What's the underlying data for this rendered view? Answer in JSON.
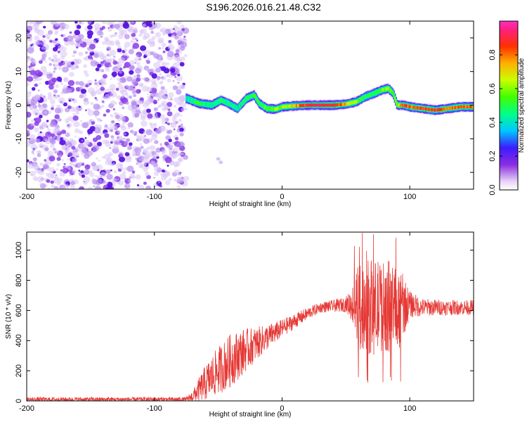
{
  "title": "S196.2026.016.21.48.C32",
  "chart_data": [
    {
      "type": "heatmap",
      "xlabel": "Height of straight line (km)",
      "ylabel": "Frequency (Hz)",
      "xlim": [
        -200,
        150
      ],
      "ylim": [
        -25,
        25
      ],
      "xticks": [
        -200,
        -100,
        0,
        100
      ],
      "yticks": [
        -20,
        -10,
        0,
        10,
        20
      ],
      "colorbar": {
        "label": "Normalized spectral amplitude",
        "range": [
          0,
          1
        ],
        "ticks": [
          "0.0",
          "0.2",
          "0.4",
          "0.6",
          "0.8"
        ]
      },
      "noise_region_x": [
        -200,
        -75
      ],
      "ridge": {
        "x": [
          -75,
          -65,
          -55,
          -48,
          -42,
          -35,
          -28,
          -22,
          -18,
          -12,
          -5,
          0,
          10,
          20,
          30,
          40,
          50,
          58,
          65,
          72,
          78,
          83,
          87,
          90,
          95,
          100,
          110,
          120,
          130,
          140,
          150
        ],
        "freq": [
          2,
          0.5,
          0,
          1.5,
          0.5,
          -1,
          2,
          3,
          0.5,
          -1,
          -1.2,
          -0.5,
          -0.2,
          0,
          0,
          0,
          0.3,
          1,
          2.5,
          3.5,
          4.5,
          5,
          3.5,
          0,
          0,
          -0.5,
          -1,
          -1.5,
          -1,
          -0.5,
          -0.5
        ],
        "amp": [
          0.4,
          0.5,
          0.45,
          0.5,
          0.45,
          0.4,
          0.5,
          0.55,
          0.5,
          0.55,
          0.6,
          0.6,
          0.75,
          0.9,
          0.95,
          0.9,
          0.75,
          0.6,
          0.5,
          0.5,
          0.55,
          0.6,
          0.5,
          0.6,
          0.85,
          0.8,
          0.85,
          0.85,
          0.8,
          0.85,
          0.8
        ]
      }
    },
    {
      "type": "line",
      "xlabel": "Height of straight line (km)",
      "ylabel": "SNR (10 * v/v)",
      "xlim": [
        -200,
        150
      ],
      "ylim": [
        0,
        1120
      ],
      "xticks": [
        -200,
        -100,
        0,
        100
      ],
      "yticks": [
        0,
        200,
        400,
        600,
        800,
        1000
      ],
      "color": "#e53935",
      "envelope": {
        "x": [
          -200,
          -75,
          -70,
          -60,
          -50,
          -40,
          -30,
          -20,
          -10,
          0,
          10,
          20,
          30,
          40,
          50,
          55,
          60,
          70,
          80,
          90,
          100,
          110,
          120,
          130,
          140,
          150
        ],
        "base": [
          10,
          10,
          30,
          120,
          200,
          270,
          330,
          380,
          430,
          480,
          530,
          580,
          620,
          630,
          640,
          640,
          630,
          620,
          630,
          620,
          640,
          620,
          620,
          620,
          620,
          620
        ],
        "spread": [
          15,
          15,
          40,
          120,
          160,
          180,
          150,
          110,
          80,
          60,
          50,
          40,
          35,
          40,
          50,
          120,
          300,
          320,
          300,
          320,
          90,
          60,
          55,
          50,
          50,
          50
        ]
      }
    }
  ]
}
